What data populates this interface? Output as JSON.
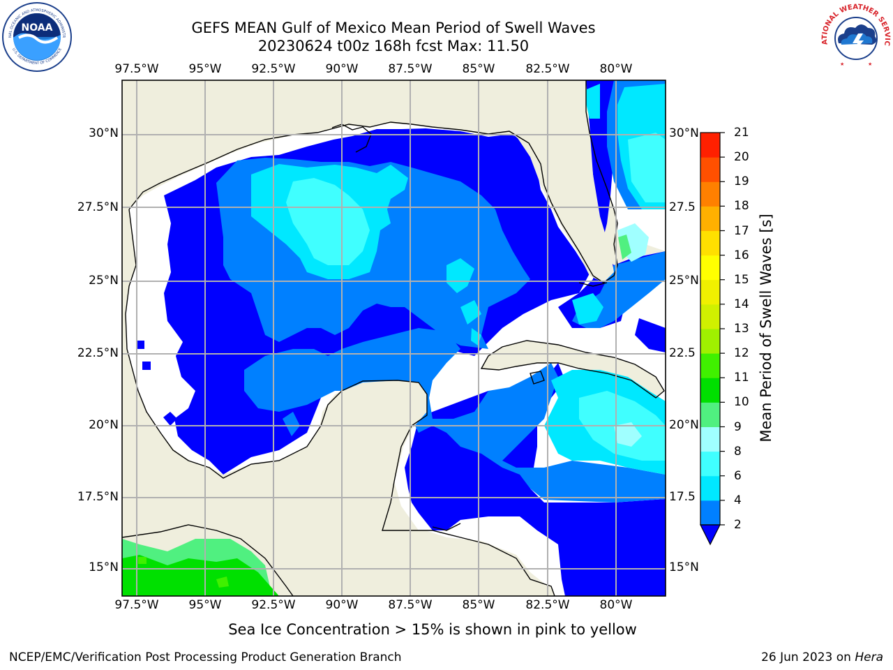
{
  "header": {
    "title_line1": "GEFS MEAN Gulf of Mexico Mean Period of Swell Waves",
    "title_line2": "20230624 t00z 168h fcst   Max: 11.50"
  },
  "logos": {
    "left": {
      "name": "NOAA",
      "ring_text": "NATIONAL OCEANIC AND ATMOSPHERIC ADMINISTRATION",
      "ring_text_bottom": "U.S. DEPARTMENT OF COMMERCE"
    },
    "right": {
      "name": "NATIONAL WEATHER SERVICE"
    }
  },
  "map": {
    "projection": "PlateCarree",
    "lon_range": [
      -98.5,
      -78.5
    ],
    "lat_range": [
      14,
      32
    ],
    "lon_ticks": [
      "97.5°W",
      "95°W",
      "92.5°W",
      "90°W",
      "87.5°W",
      "85°W",
      "82.5°W",
      "80°W"
    ],
    "lat_ticks_left": [
      "30°N",
      "27.5°N",
      "25°N",
      "22.5°N",
      "20°N",
      "17.5°N",
      "15°N"
    ],
    "lat_ticks_right": [
      "30°N",
      "27.5",
      "25°N",
      "22.5",
      "20°N",
      "17.5",
      "15°N"
    ],
    "gridlines": true,
    "colors": {
      "land": "#efeedd",
      "no_data": "#ffffff",
      "coastline": "#000000",
      "grid": "#b0b0b0"
    }
  },
  "colorbar": {
    "title": "Mean Period of Swell Waves [s]",
    "labels": [
      "2",
      "4",
      "6",
      "8",
      "9",
      "10",
      "11",
      "12",
      "13",
      "14",
      "15",
      "16",
      "17",
      "18",
      "19",
      "20",
      "21"
    ],
    "bounds": [
      2,
      4,
      6,
      8,
      9,
      10,
      11,
      12,
      13,
      14,
      15,
      16,
      17,
      18,
      19,
      20,
      21
    ],
    "colors": [
      "#0080ff",
      "#00e8ff",
      "#40ffff",
      "#a0ffff",
      "#50f080",
      "#00e000",
      "#40f000",
      "#a0f000",
      "#d0f000",
      "#f0f000",
      "#ffff00",
      "#ffe000",
      "#ffb000",
      "#ff8000",
      "#ff5000",
      "#ff2000"
    ],
    "under_color": "#0000ff",
    "extend": "min"
  },
  "footer": {
    "note": "Sea Ice Concentration > 15% is shown in pink to yellow",
    "credit_left": "NCEP/EMC/Verification Post Processing Product Generation Branch",
    "credit_date": "26 Jun 2023 on ",
    "credit_host": "Hera"
  }
}
